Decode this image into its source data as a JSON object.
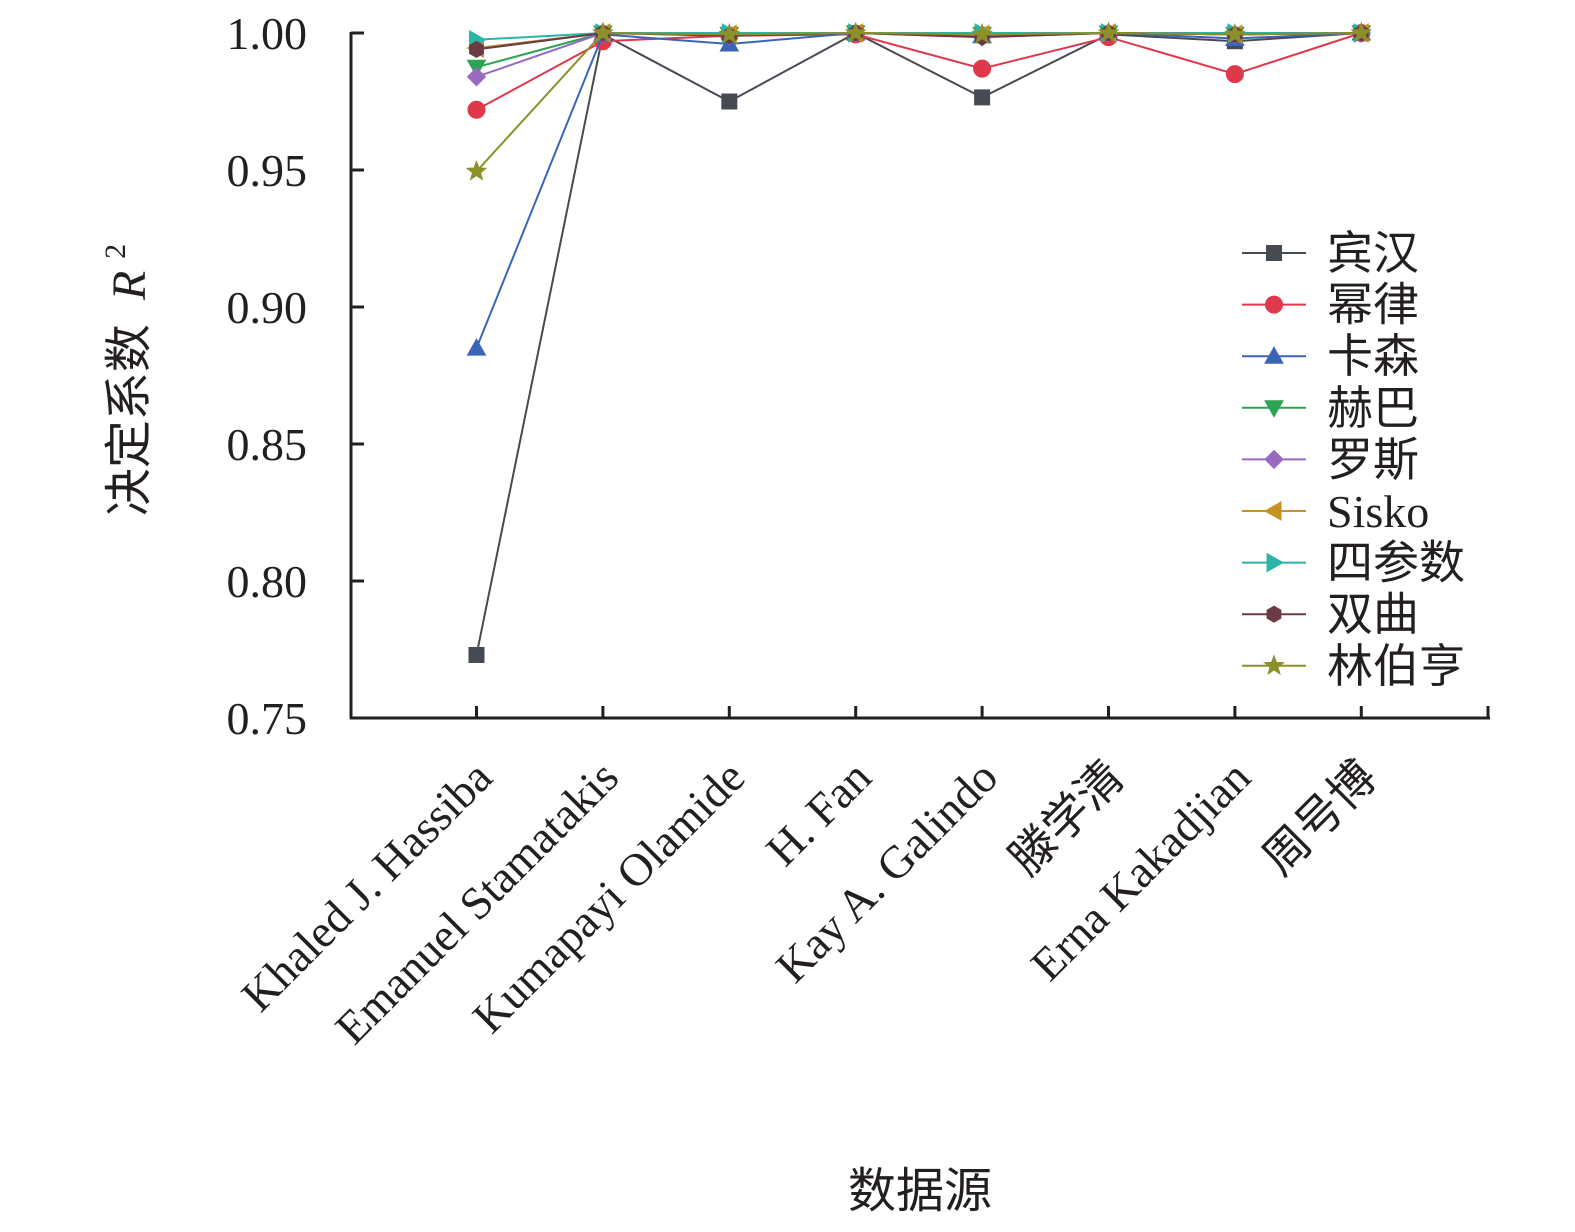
{
  "chart_data": {
    "type": "line",
    "xlabel": "数据源",
    "ylabel": "决定系数",
    "ylabel_var": "R",
    "ylabel_sup": "2",
    "ylim": [
      0.75,
      1.0
    ],
    "yticks": [
      "0.75",
      "0.80",
      "0.85",
      "0.90",
      "0.95",
      "1.00"
    ],
    "categories": [
      "Khaled J. Hassiba",
      "Emanuel Stamatakis",
      "Kumapayi Olamide",
      "H. Fan",
      "Kay A. Galindo",
      "滕学清",
      "Erna Kakadjian",
      "周号博"
    ],
    "legend_position": "right",
    "grid": false,
    "series": [
      {
        "name": "宾汉",
        "color": "#464a52",
        "marker": "square",
        "values": [
          0.773,
          0.9995,
          0.975,
          1.0,
          0.9765,
          0.9995,
          0.997,
          1.0
        ]
      },
      {
        "name": "幂律",
        "color": "#e0384b",
        "marker": "circle",
        "values": [
          0.972,
          0.997,
          0.999,
          0.9995,
          0.987,
          0.9985,
          0.985,
          1.0
        ]
      },
      {
        "name": "卡森",
        "color": "#3a65b5",
        "marker": "triangle-up",
        "values": [
          0.885,
          0.9995,
          0.996,
          1.0,
          0.999,
          1.0,
          0.998,
          1.0
        ]
      },
      {
        "name": "赫巴",
        "color": "#2ca453",
        "marker": "triangle-down",
        "values": [
          0.9875,
          1.0,
          0.9995,
          1.0,
          0.9995,
          1.0,
          0.9995,
          1.0
        ]
      },
      {
        "name": "罗斯",
        "color": "#9a6ac3",
        "marker": "diamond",
        "values": [
          0.984,
          1.0,
          0.999,
          1.0,
          0.9985,
          1.0,
          0.9995,
          1.0
        ]
      },
      {
        "name": "Sisko",
        "color": "#c69223",
        "marker": "triangle-left",
        "values": [
          0.9945,
          1.0,
          0.9995,
          1.0,
          0.9995,
          1.0,
          0.9995,
          1.0
        ]
      },
      {
        "name": "四参数",
        "color": "#2bb5a8",
        "marker": "triangle-right",
        "values": [
          0.9975,
          1.0,
          1.0,
          1.0,
          1.0,
          1.0,
          1.0,
          1.0
        ]
      },
      {
        "name": "双曲",
        "color": "#6b3b45",
        "marker": "hexagon",
        "values": [
          0.994,
          1.0,
          0.999,
          1.0,
          0.9985,
          1.0,
          0.9995,
          1.0
        ]
      },
      {
        "name": "林伯亨",
        "color": "#8b9128",
        "marker": "star",
        "values": [
          0.9495,
          1.0,
          0.9995,
          1.0,
          0.9995,
          1.0,
          0.9995,
          1.0
        ]
      }
    ]
  }
}
